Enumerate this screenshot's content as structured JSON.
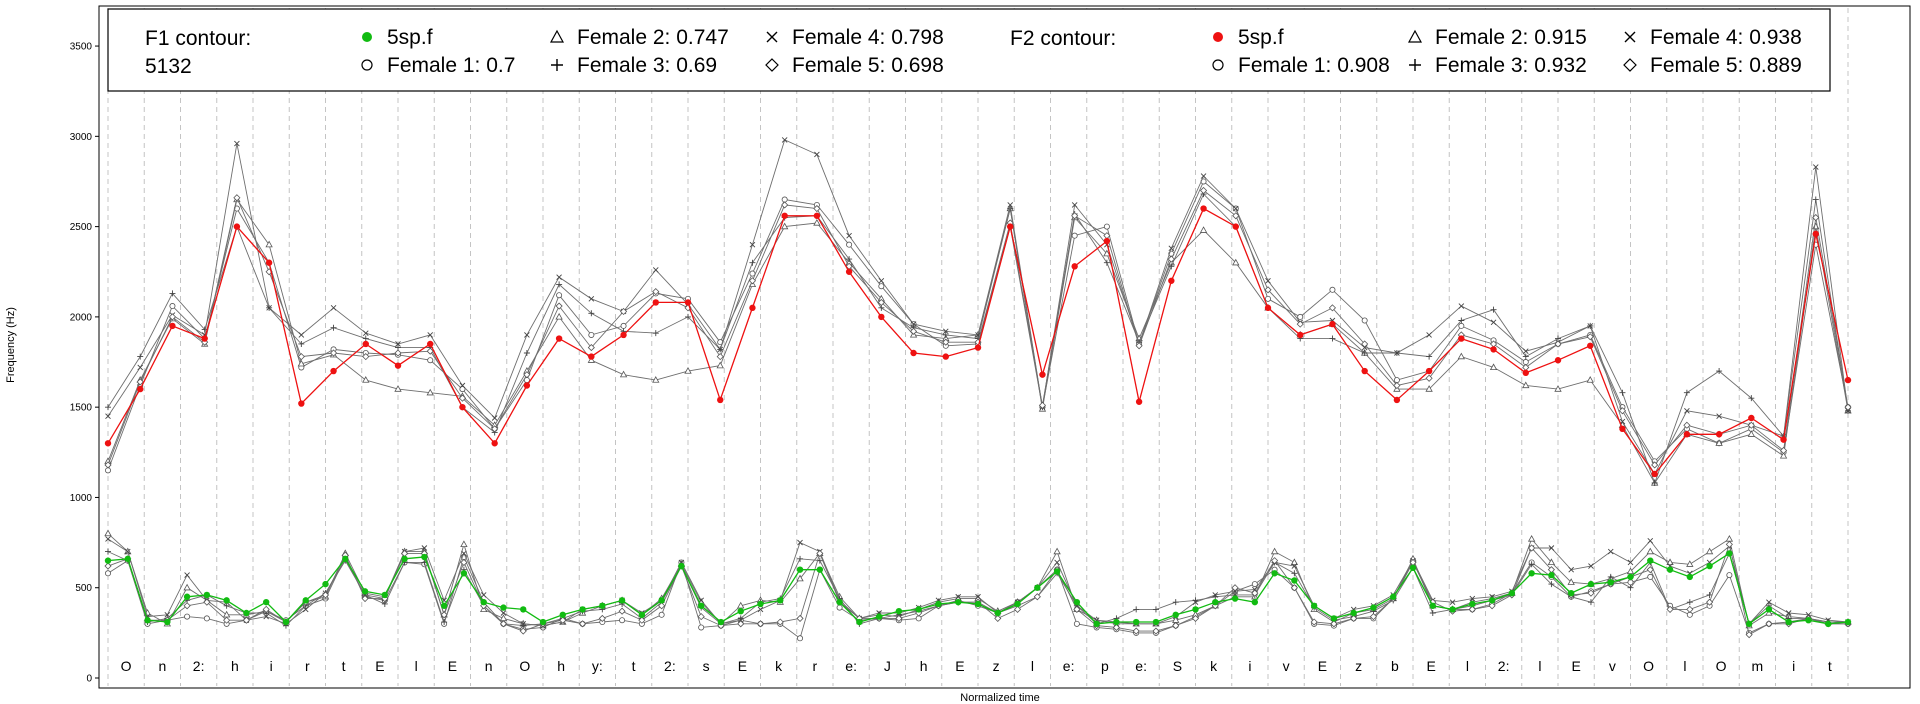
{
  "chart_data": {
    "type": "line",
    "xlabel": "Normalized time",
    "ylabel": "Frequency (Hz)",
    "ylim": [
      0,
      3600
    ],
    "yticks": [
      0,
      500,
      1000,
      1500,
      2000,
      2500,
      3000,
      3500
    ],
    "grid": "vertical dashed segment boundaries",
    "segments": [
      "O",
      "n",
      "2:",
      "h",
      "i",
      "r",
      "t",
      "E",
      "l",
      "E",
      "n",
      "O",
      "h",
      "y:",
      "t",
      "2:",
      "s",
      "E",
      "k",
      "r",
      "e:",
      "J",
      "h",
      "E",
      "z",
      "l",
      "e:",
      "p",
      "e:",
      "S",
      "k",
      "i",
      "v",
      "E",
      "z",
      "b",
      "E",
      "l",
      "2:",
      "l",
      "E",
      "v",
      "O",
      "l",
      "O",
      "m",
      "i",
      "t"
    ],
    "legend": {
      "placement": "top",
      "f1_heading": "F1 contour:",
      "f1_value": "5132",
      "f2_heading": "F2 contour:",
      "f1_entries": [
        {
          "label": "5sp.f",
          "marker": "filled-circle",
          "color": "#11bb11"
        },
        {
          "label": "Female 1: 0.7",
          "marker": "open-circle"
        },
        {
          "label": "Female 2: 0.747",
          "marker": "triangle"
        },
        {
          "label": "Female 3: 0.69",
          "marker": "plus"
        },
        {
          "label": "Female 4: 0.798",
          "marker": "cross"
        },
        {
          "label": "Female 5: 0.698",
          "marker": "diamond"
        }
      ],
      "f2_entries": [
        {
          "label": "5sp.f",
          "marker": "filled-circle",
          "color": "#ee1111"
        },
        {
          "label": "Female 1: 0.908",
          "marker": "open-circle"
        },
        {
          "label": "Female 2: 0.915",
          "marker": "triangle"
        },
        {
          "label": "Female 3: 0.932",
          "marker": "plus"
        },
        {
          "label": "Female 4: 0.938",
          "marker": "cross"
        },
        {
          "label": "Female 5: 0.889",
          "marker": "diamond"
        }
      ]
    },
    "f2_series": [
      {
        "name": "5sp.f",
        "color": "#ee1111",
        "values": [
          1300,
          1600,
          1950,
          1880,
          2500,
          2300,
          1520,
          1700,
          1850,
          1730,
          1850,
          1500,
          1300,
          1620,
          1880,
          1780,
          1900,
          2080,
          2080,
          1540,
          2050,
          2560,
          2560,
          2250,
          2000,
          1800,
          1780,
          1830,
          2500,
          1680,
          2280,
          2420,
          1530,
          2200,
          2600,
          2500,
          2050,
          1900,
          1960,
          1700,
          1540,
          1700,
          1880,
          1820,
          1690,
          1760,
          1840,
          1380,
          1130,
          1350,
          1350,
          1440,
          1320,
          2460,
          1650
        ]
      },
      {
        "name": "Female 1",
        "marker": "open-circle",
        "values": [
          1150,
          1620,
          2060,
          1880,
          2600,
          2300,
          1720,
          1820,
          1800,
          1790,
          1760,
          1600,
          1380,
          1650,
          2120,
          1900,
          1950,
          2130,
          2100,
          1860,
          2240,
          2650,
          2620,
          2400,
          2170,
          1960,
          1840,
          1850,
          2500,
          1500,
          2450,
          2500,
          1850,
          2350,
          2750,
          2600,
          2100,
          2000,
          2150,
          1980,
          1650,
          1700,
          1950,
          1870,
          1750,
          1850,
          1900,
          1500,
          1200,
          1380,
          1300,
          1380,
          1250,
          2400,
          1500
        ]
      },
      {
        "name": "Female 2",
        "marker": "triangle",
        "values": [
          1200,
          1650,
          1990,
          1850,
          2650,
          2400,
          1740,
          1790,
          1650,
          1600,
          1580,
          1560,
          1400,
          1700,
          2000,
          1760,
          1680,
          1650,
          1700,
          1730,
          2180,
          2500,
          2520,
          2300,
          2100,
          1900,
          1880,
          1900,
          2600,
          1490,
          2550,
          2350,
          1880,
          2300,
          2480,
          2300,
          2050,
          1900,
          1960,
          1800,
          1600,
          1600,
          1780,
          1720,
          1620,
          1600,
          1650,
          1400,
          1080,
          1350,
          1300,
          1350,
          1230,
          2500,
          1480
        ]
      },
      {
        "name": "Female 3",
        "marker": "plus",
        "values": [
          1500,
          1780,
          2130,
          1930,
          2500,
          2050,
          1850,
          1940,
          1880,
          1830,
          1830,
          1500,
          1360,
          1800,
          2180,
          2020,
          1920,
          1910,
          2000,
          1820,
          2300,
          2550,
          2560,
          2320,
          2050,
          1940,
          1900,
          1880,
          2600,
          1500,
          2570,
          2300,
          1860,
          2280,
          2680,
          2500,
          2050,
          1880,
          1880,
          1800,
          1800,
          1780,
          1980,
          2040,
          1780,
          1880,
          1950,
          1580,
          1080,
          1580,
          1700,
          1550,
          1340,
          2650,
          1480
        ]
      },
      {
        "name": "Female 4",
        "marker": "cross",
        "values": [
          1450,
          1720,
          2010,
          1900,
          2960,
          2050,
          1900,
          2050,
          1910,
          1850,
          1900,
          1620,
          1440,
          1900,
          2220,
          2100,
          2030,
          2260,
          2070,
          1820,
          2400,
          2980,
          2900,
          2450,
          2200,
          1960,
          1920,
          1900,
          2620,
          1500,
          2620,
          2400,
          1850,
          2380,
          2780,
          2600,
          2200,
          1970,
          1980,
          1830,
          1800,
          1900,
          2060,
          1970,
          1810,
          1860,
          1950,
          1420,
          1130,
          1480,
          1450,
          1400,
          1340,
          2830,
          1480
        ]
      },
      {
        "name": "Female 5",
        "marker": "diamond",
        "values": [
          1180,
          1640,
          2000,
          1860,
          2660,
          2250,
          1780,
          1800,
          1780,
          1800,
          1810,
          1550,
          1380,
          1680,
          2060,
          1830,
          2030,
          2140,
          2050,
          1780,
          2200,
          2620,
          2600,
          2280,
          2080,
          1920,
          1860,
          1860,
          2520,
          1510,
          2560,
          2450,
          1840,
          2320,
          2700,
          2560,
          2150,
          1960,
          2050,
          1850,
          1620,
          1660,
          1900,
          1850,
          1720,
          1850,
          1890,
          1480,
          1180,
          1400,
          1350,
          1400,
          1260,
          2550,
          1500
        ]
      }
    ],
    "f1_series": [
      {
        "name": "5sp.f",
        "color": "#11bb11",
        "values": [
          650,
          660,
          320,
          310,
          450,
          460,
          430,
          360,
          420,
          310,
          430,
          520,
          660,
          480,
          460,
          660,
          670,
          400,
          580,
          420,
          390,
          380,
          310,
          350,
          380,
          400,
          430,
          350,
          430,
          620,
          400,
          310,
          370,
          410,
          430,
          600,
          600,
          420,
          310,
          340,
          370,
          380,
          410,
          420,
          410,
          360,
          410,
          500,
          590,
          420,
          300,
          310,
          310,
          310,
          350,
          380,
          420,
          440,
          420,
          580,
          540,
          400,
          330,
          360,
          390,
          450,
          610,
          400,
          380,
          410,
          430,
          470,
          580,
          570,
          470,
          520,
          530,
          560,
          650,
          600,
          560,
          620,
          690,
          300,
          380,
          310,
          320,
          300,
          310
        ]
      },
      {
        "name": "Female 1",
        "marker": "open-circle",
        "values": [
          580,
          650,
          300,
          320,
          340,
          330,
          300,
          320,
          370,
          320,
          400,
          440,
          670,
          450,
          430,
          640,
          630,
          300,
          670,
          420,
          300,
          270,
          280,
          330,
          300,
          310,
          320,
          300,
          350,
          640,
          280,
          290,
          320,
          300,
          300,
          220,
          600,
          390,
          320,
          330,
          320,
          330,
          400,
          430,
          400,
          360,
          420,
          500,
          600,
          300,
          280,
          270,
          250,
          250,
          290,
          340,
          400,
          480,
          520,
          600,
          500,
          300,
          290,
          330,
          330,
          440,
          650,
          400,
          380,
          380,
          410,
          470,
          640,
          560,
          450,
          480,
          520,
          530,
          560,
          400,
          350,
          400,
          570,
          250,
          300,
          310,
          330,
          300,
          300
        ]
      },
      {
        "name": "Female 2",
        "marker": "open-triangle",
        "values": [
          800,
          700,
          360,
          300,
          500,
          430,
          350,
          350,
          370,
          310,
          420,
          450,
          690,
          470,
          450,
          700,
          700,
          350,
          740,
          380,
          330,
          300,
          290,
          310,
          360,
          400,
          430,
          350,
          440,
          630,
          420,
          300,
          400,
          430,
          420,
          550,
          690,
          450,
          330,
          350,
          340,
          380,
          420,
          440,
          440,
          370,
          420,
          500,
          700,
          380,
          320,
          310,
          300,
          300,
          320,
          350,
          400,
          450,
          450,
          700,
          640,
          380,
          310,
          360,
          380,
          440,
          660,
          400,
          380,
          420,
          440,
          470,
          770,
          640,
          530,
          520,
          550,
          590,
          700,
          640,
          630,
          700,
          770,
          290,
          360,
          340,
          330,
          310,
          310
        ]
      },
      {
        "name": "Female 3",
        "marker": "plus",
        "values": [
          700,
          650,
          310,
          330,
          430,
          460,
          400,
          360,
          360,
          290,
          400,
          470,
          650,
          460,
          410,
          640,
          640,
          310,
          600,
          400,
          300,
          290,
          300,
          330,
          370,
          380,
          410,
          330,
          420,
          620,
          390,
          300,
          330,
          420,
          440,
          660,
          650,
          440,
          300,
          330,
          350,
          370,
          400,
          420,
          420,
          360,
          400,
          450,
          580,
          400,
          300,
          330,
          380,
          380,
          420,
          430,
          450,
          460,
          460,
          640,
          580,
          390,
          320,
          340,
          370,
          430,
          610,
          360,
          380,
          400,
          430,
          460,
          630,
          520,
          450,
          420,
          560,
          500,
          640,
          380,
          420,
          460,
          690,
          300,
          400,
          330,
          330,
          310,
          310
        ]
      },
      {
        "name": "Female 4",
        "marker": "cross",
        "values": [
          770,
          700,
          340,
          350,
          570,
          430,
          420,
          320,
          340,
          300,
          380,
          470,
          660,
          460,
          440,
          700,
          720,
          430,
          690,
          460,
          360,
          300,
          290,
          310,
          380,
          400,
          430,
          360,
          430,
          640,
          430,
          300,
          320,
          380,
          430,
          750,
          700,
          430,
          330,
          360,
          360,
          390,
          430,
          450,
          450,
          360,
          420,
          500,
          640,
          400,
          320,
          300,
          300,
          300,
          340,
          420,
          460,
          480,
          490,
          640,
          620,
          400,
          330,
          380,
          400,
          460,
          650,
          430,
          420,
          440,
          450,
          480,
          720,
          720,
          600,
          620,
          700,
          640,
          760,
          620,
          580,
          640,
          730,
          300,
          420,
          360,
          350,
          320,
          310
        ]
      },
      {
        "name": "Female 5",
        "marker": "diamond",
        "values": [
          620,
          660,
          320,
          320,
          400,
          420,
          320,
          320,
          380,
          310,
          420,
          460,
          680,
          440,
          440,
          690,
          690,
          350,
          640,
          400,
          300,
          260,
          300,
          320,
          300,
          330,
          370,
          320,
          400,
          620,
          340,
          290,
          300,
          300,
          310,
          330,
          690,
          420,
          330,
          330,
          330,
          360,
          400,
          420,
          420,
          330,
          380,
          450,
          600,
          380,
          290,
          280,
          260,
          260,
          290,
          330,
          400,
          500,
          470,
          650,
          500,
          310,
          300,
          330,
          340,
          440,
          640,
          420,
          370,
          380,
          400,
          460,
          720,
          600,
          460,
          470,
          520,
          560,
          600,
          380,
          380,
          420,
          740,
          240,
          300,
          300,
          330,
          300,
          300
        ]
      }
    ]
  }
}
